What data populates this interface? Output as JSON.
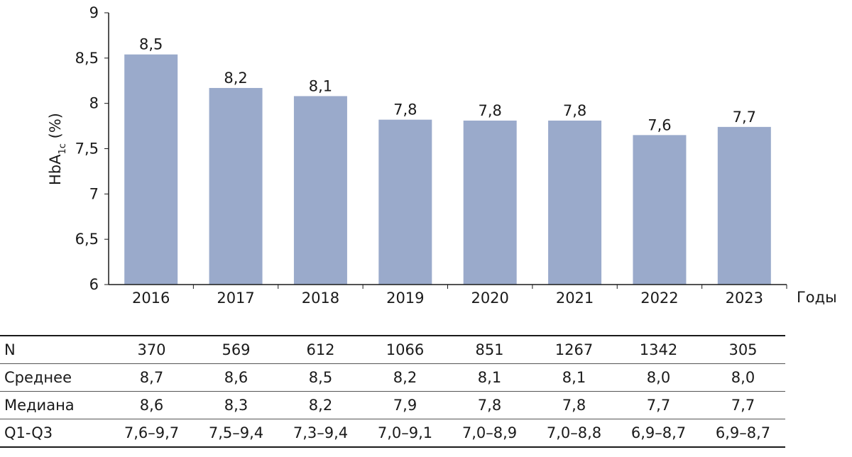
{
  "chart_data": {
    "type": "bar",
    "categories": [
      "2016",
      "2017",
      "2018",
      "2019",
      "2020",
      "2021",
      "2022",
      "2023"
    ],
    "values": [
      8.54,
      8.17,
      8.08,
      7.82,
      7.81,
      7.81,
      7.65,
      7.74
    ],
    "data_labels": [
      "8,5",
      "8,2",
      "8,1",
      "7,8",
      "7,8",
      "7,8",
      "7,6",
      "7,7"
    ],
    "ylim": [
      6,
      9
    ],
    "yticks": [
      "6",
      "6,5",
      "7",
      "7,5",
      "8",
      "8,5",
      "9"
    ],
    "ylabel_main": "HbA",
    "ylabel_sub": "1c",
    "ylabel_tail": " (%)",
    "xunit": "Годы",
    "grid": false,
    "bar_color": "#9aaacb"
  },
  "table": {
    "rows": [
      {
        "label": "N",
        "values": [
          "370",
          "569",
          "612",
          "1066",
          "851",
          "1267",
          "1342",
          "305"
        ]
      },
      {
        "label": "Среднее",
        "values": [
          "8,7",
          "8,6",
          "8,5",
          "8,2",
          "8,1",
          "8,1",
          "8,0",
          "8,0"
        ]
      },
      {
        "label": "Медиана",
        "values": [
          "8,6",
          "8,3",
          "8,2",
          "7,9",
          "7,8",
          "7,8",
          "7,7",
          "7,7"
        ]
      },
      {
        "label": "Q1-Q3",
        "values": [
          "7,6–9,7",
          "7,5–9,4",
          "7,3–9,4",
          "7,0–9,1",
          "7,0–8,9",
          "7,0–8,8",
          "6,9–8,7",
          "6,9–8,7"
        ]
      }
    ]
  }
}
